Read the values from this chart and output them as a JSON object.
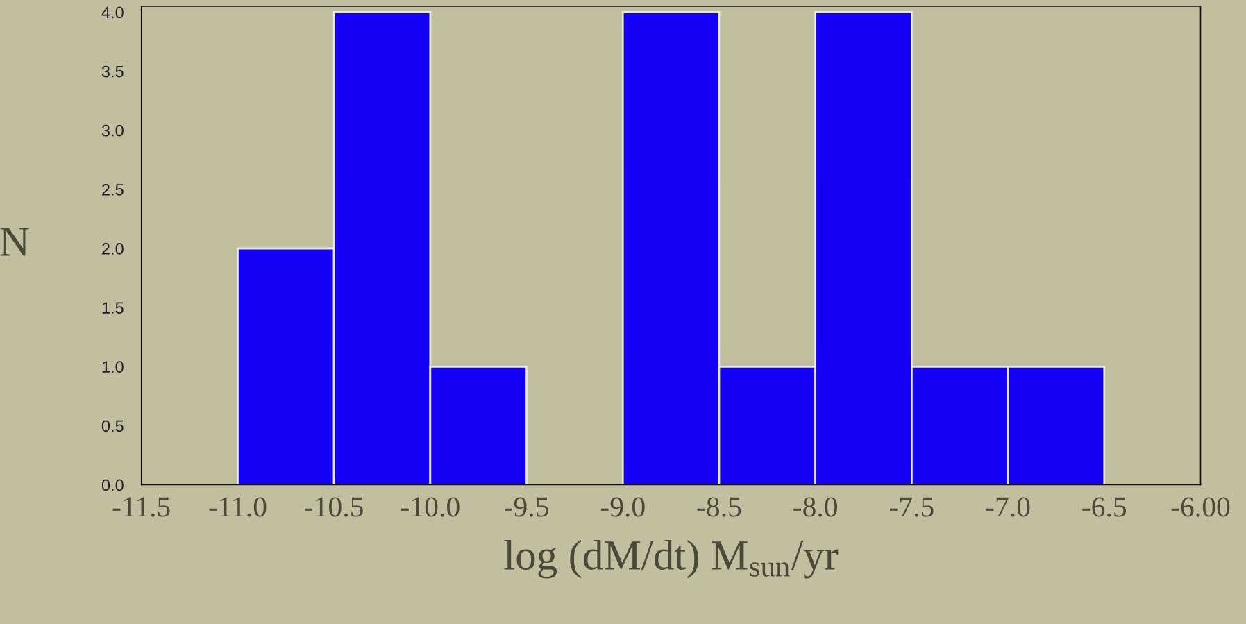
{
  "chart_data": {
    "type": "histogram",
    "xlabel": "log (dM/dt) M$_{sun}$/yr",
    "ylabel": "N",
    "bins": [
      -11.5,
      -11.0,
      -10.5,
      -10.0,
      -9.5,
      -9.0,
      -8.5,
      -8.0,
      -7.5,
      -7.0,
      -6.5,
      -6.0
    ],
    "values": [
      0,
      2,
      4,
      1,
      0,
      4,
      1,
      4,
      1,
      1,
      0
    ],
    "color": "#1400f5",
    "xlim": [
      -11.5,
      -6.0
    ],
    "xticks": [
      -11.5,
      {
        "value": -11,
        "label": "-11.0"
      },
      -10.5,
      {
        "value": -10,
        "label": "-10.0"
      },
      -9.5,
      {
        "value": -9,
        "label": "-9.0"
      },
      -8.5,
      {
        "value": -8,
        "label": "-8.0"
      },
      -7.5,
      {
        "value": -7,
        "label": "-7.0"
      },
      -6.5,
      {
        "value": -6.0,
        "label": "-6.00"
      }
    ],
    "ylim": [
      0,
      4.05
    ],
    "yticks": [
      {
        "value": 0,
        "label": "0.0"
      },
      {
        "value": 0.5,
        "label": "0.5"
      },
      {
        "value": 1,
        "label": "1.0"
      },
      {
        "value": 1.5,
        "label": "1.5"
      },
      {
        "value": 2,
        "label": "2.0"
      },
      {
        "value": 2.5,
        "label": "2.5"
      },
      {
        "value": 3,
        "label": "3.0"
      },
      {
        "value": 3.5,
        "label": "3.5"
      },
      {
        "value": 4,
        "label": "4.0"
      }
    ],
    "grid": false
  }
}
